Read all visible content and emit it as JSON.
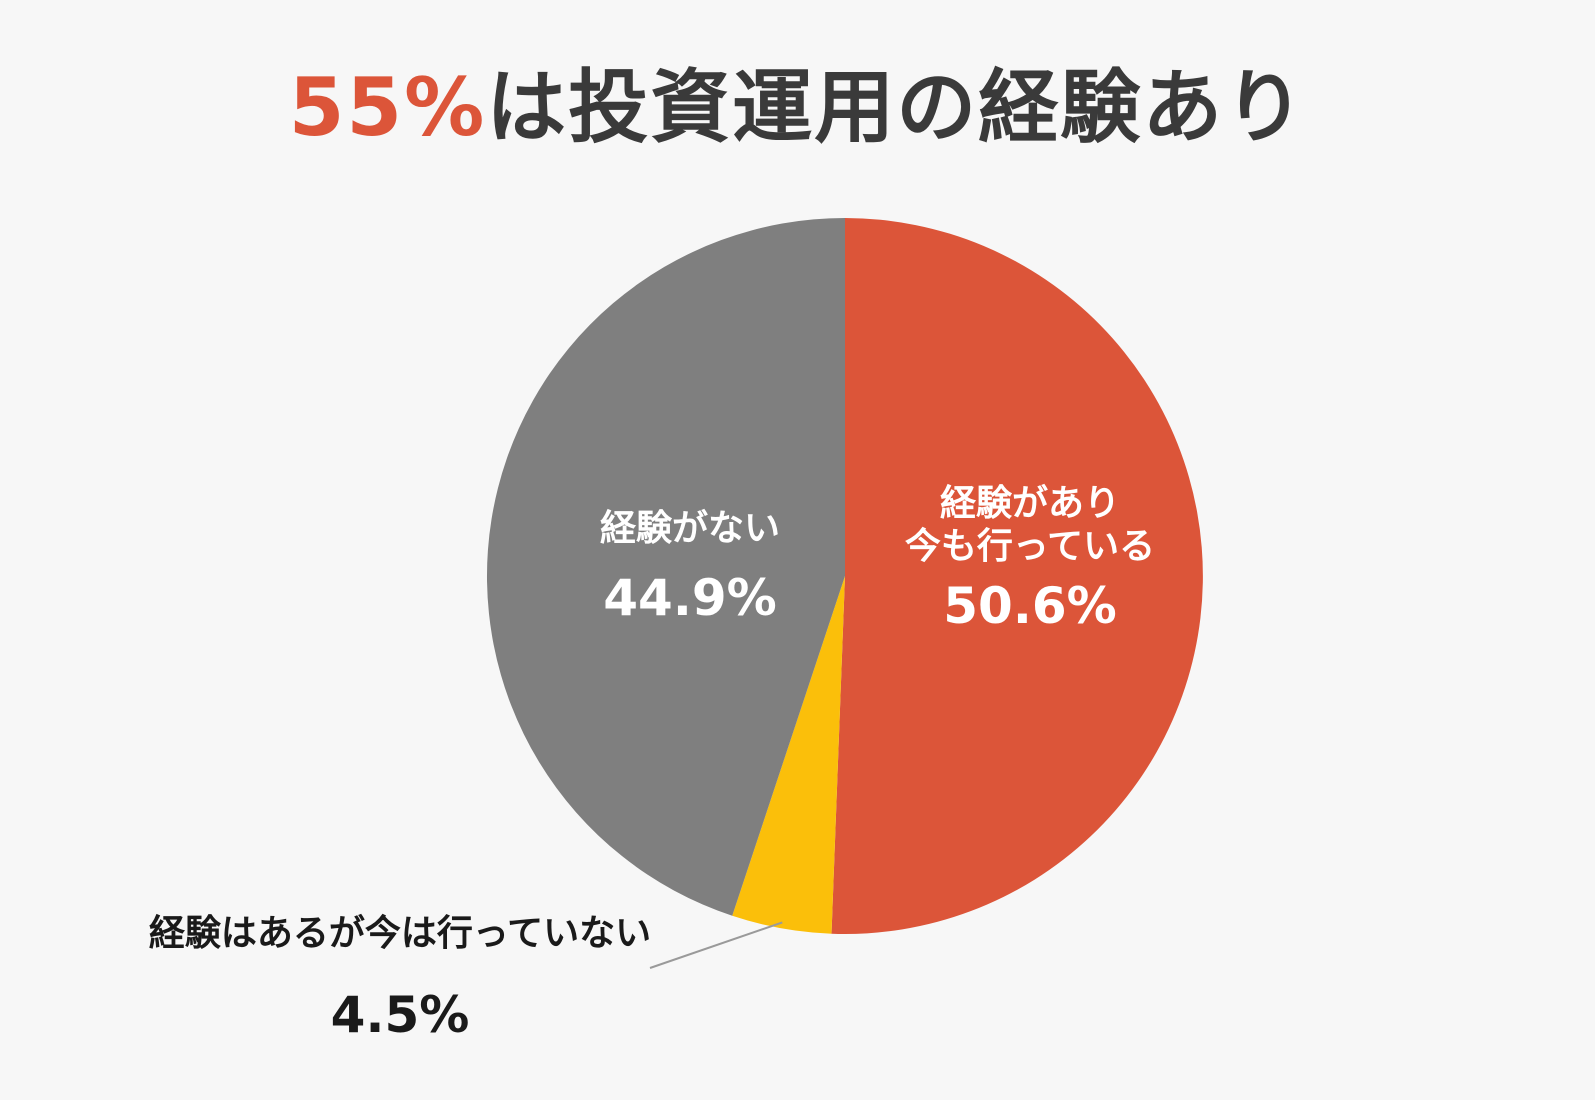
{
  "title": {
    "highlight": "55%",
    "rest": "は投資運用の経験あり"
  },
  "chart_data": {
    "type": "pie",
    "start_angle_deg": 0,
    "direction": "clockwise",
    "slices": [
      {
        "key": "current",
        "name_lines": [
          "経験があり",
          "今も行っている"
        ],
        "value": 50.6,
        "value_label": "50.6%",
        "color": "#dc5539",
        "label_color": "#ffffff"
      },
      {
        "key": "past",
        "name_lines": [
          "経験はあるが今は行っていない"
        ],
        "value": 4.5,
        "value_label": "4.5%",
        "color": "#fbbf0a",
        "label_color": "#1a1a1a"
      },
      {
        "key": "never",
        "name_lines": [
          "経験がない"
        ],
        "value": 44.9,
        "value_label": "44.9%",
        "color": "#7f7f7f",
        "label_color": "#ffffff"
      }
    ]
  }
}
